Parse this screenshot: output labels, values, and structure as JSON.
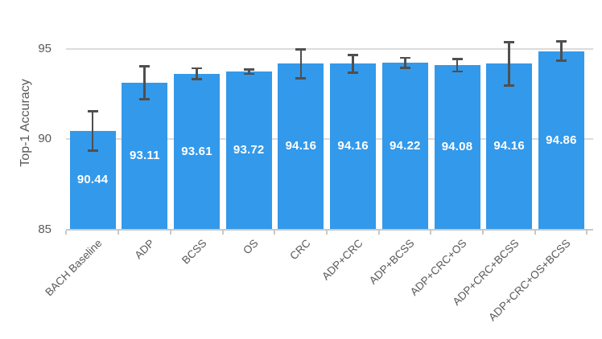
{
  "chart_data": {
    "type": "bar",
    "title": "",
    "ylabel": "Top-1 Accuracy",
    "xlabel": "",
    "categories": [
      "BACH Baseline",
      "ADP",
      "BCSS",
      "OS",
      "CRC",
      "ADP+CRC",
      "ADP+BCSS",
      "ADP+CRC+OS",
      "ADP+CRC+BCSS",
      "ADP+CRC+OS+BCSS"
    ],
    "values": [
      90.44,
      93.11,
      93.61,
      93.72,
      94.16,
      94.16,
      94.22,
      94.08,
      94.16,
      94.86
    ],
    "value_labels": [
      "90.44",
      "93.11",
      "93.61",
      "93.72",
      "94.16",
      "94.16",
      "94.22",
      "94.08",
      "94.16",
      "94.86"
    ],
    "error_bars": [
      1.1,
      0.9,
      0.3,
      0.12,
      0.8,
      0.5,
      0.27,
      0.35,
      1.2,
      0.53
    ],
    "yticks": [
      85,
      90,
      95
    ],
    "ytick_labels": [
      "85",
      "90",
      "95"
    ],
    "ylim": [
      85,
      95.7
    ],
    "grid": true,
    "legend_position": "none",
    "colors": {
      "bar": "#3399EA",
      "error_bar": "#4f4f4f",
      "value_label": "#ffffff",
      "axis_text": "#595959",
      "gridline": "#dcdcdc",
      "axis_line": "#c8c8c8",
      "background": "#ffffff"
    }
  }
}
